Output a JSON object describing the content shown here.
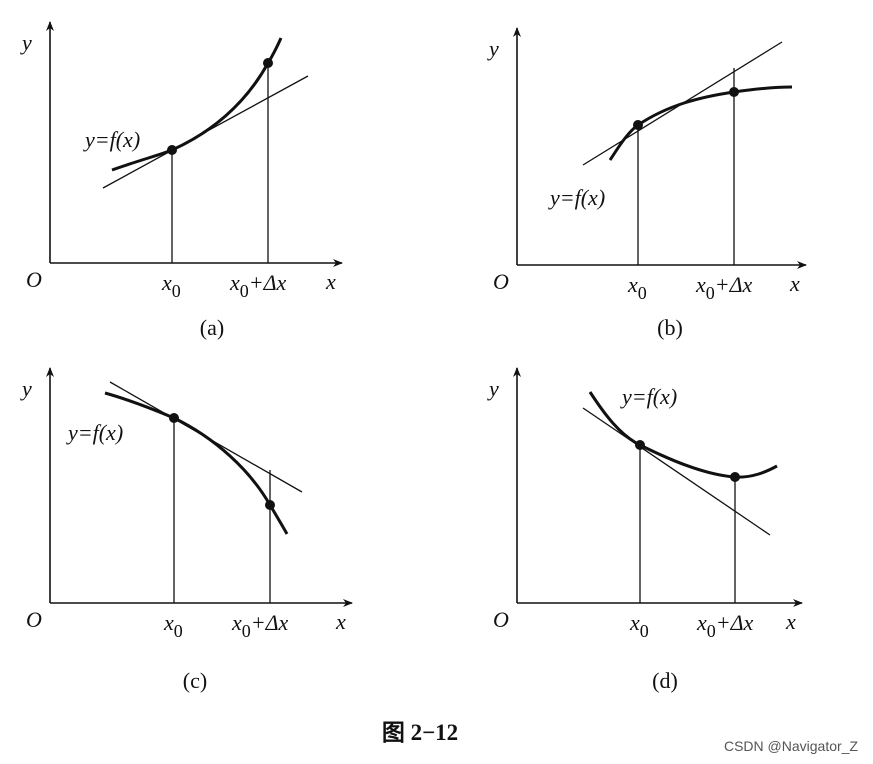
{
  "axes": {
    "y": "y",
    "x": "x",
    "origin": "O",
    "x0_base": "x",
    "x0_sub": "0",
    "dx": "+Δx"
  },
  "panels": [
    {
      "label": "(a)",
      "curve_label": "y=f(x)"
    },
    {
      "label": "(b)",
      "curve_label": "y=f(x)"
    },
    {
      "label": "(c)",
      "curve_label": "y=f(x)"
    },
    {
      "label": "(d)",
      "curve_label": "y=f(x)"
    }
  ],
  "caption": "图 2−12",
  "watermark": "CSDN @Navigator_Z"
}
